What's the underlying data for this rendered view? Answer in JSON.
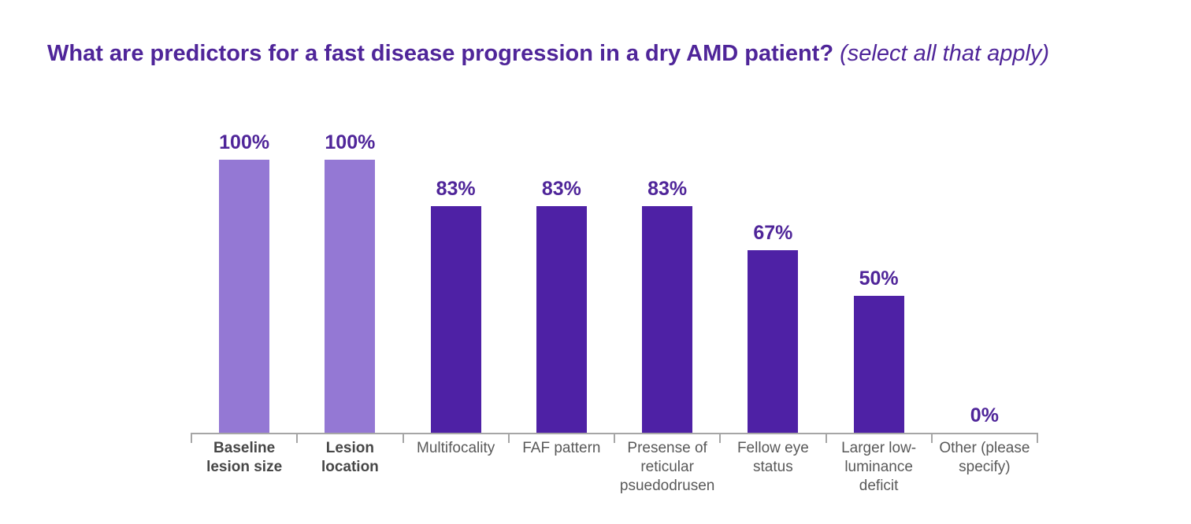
{
  "title": {
    "main": "What are predictors for a fast disease progression in a dry AMD patient?",
    "suffix": " (select all that apply)"
  },
  "colors": {
    "background": "#FFFFFF",
    "title_text": "#4F2599",
    "value_label_text": "#4F2599",
    "bar_light": "#9478D4",
    "bar_dark": "#4E21A5",
    "axis": "#A6A6A6",
    "category_label": "#595959",
    "category_label_emphasis": "#474747"
  },
  "chart_data": {
    "type": "bar",
    "title": "What are predictors for a fast disease progression in a dry AMD patient? (select all that apply)",
    "categories": [
      "Baseline lesion size",
      "Lesion location",
      "Multifocality",
      "FAF pattern",
      "Presense of reticular psuedodrusen",
      "Fellow eye status",
      "Larger low-luminance deficit",
      "Other (please specify)"
    ],
    "values": [
      100,
      100,
      83,
      83,
      83,
      67,
      50,
      0
    ],
    "value_labels": [
      "100%",
      "100%",
      "83%",
      "83%",
      "83%",
      "67%",
      "50%",
      "0%"
    ],
    "bar_palette": [
      "light",
      "light",
      "dark",
      "dark",
      "dark",
      "dark",
      "dark",
      "dark"
    ],
    "emphasized_category_indexes": [
      0,
      1
    ],
    "ylim": [
      0,
      100
    ],
    "xlabel": "",
    "ylabel": "",
    "grid": false,
    "legend": false,
    "data_labels": "above-bars",
    "axis_ticks": "between-categories"
  }
}
